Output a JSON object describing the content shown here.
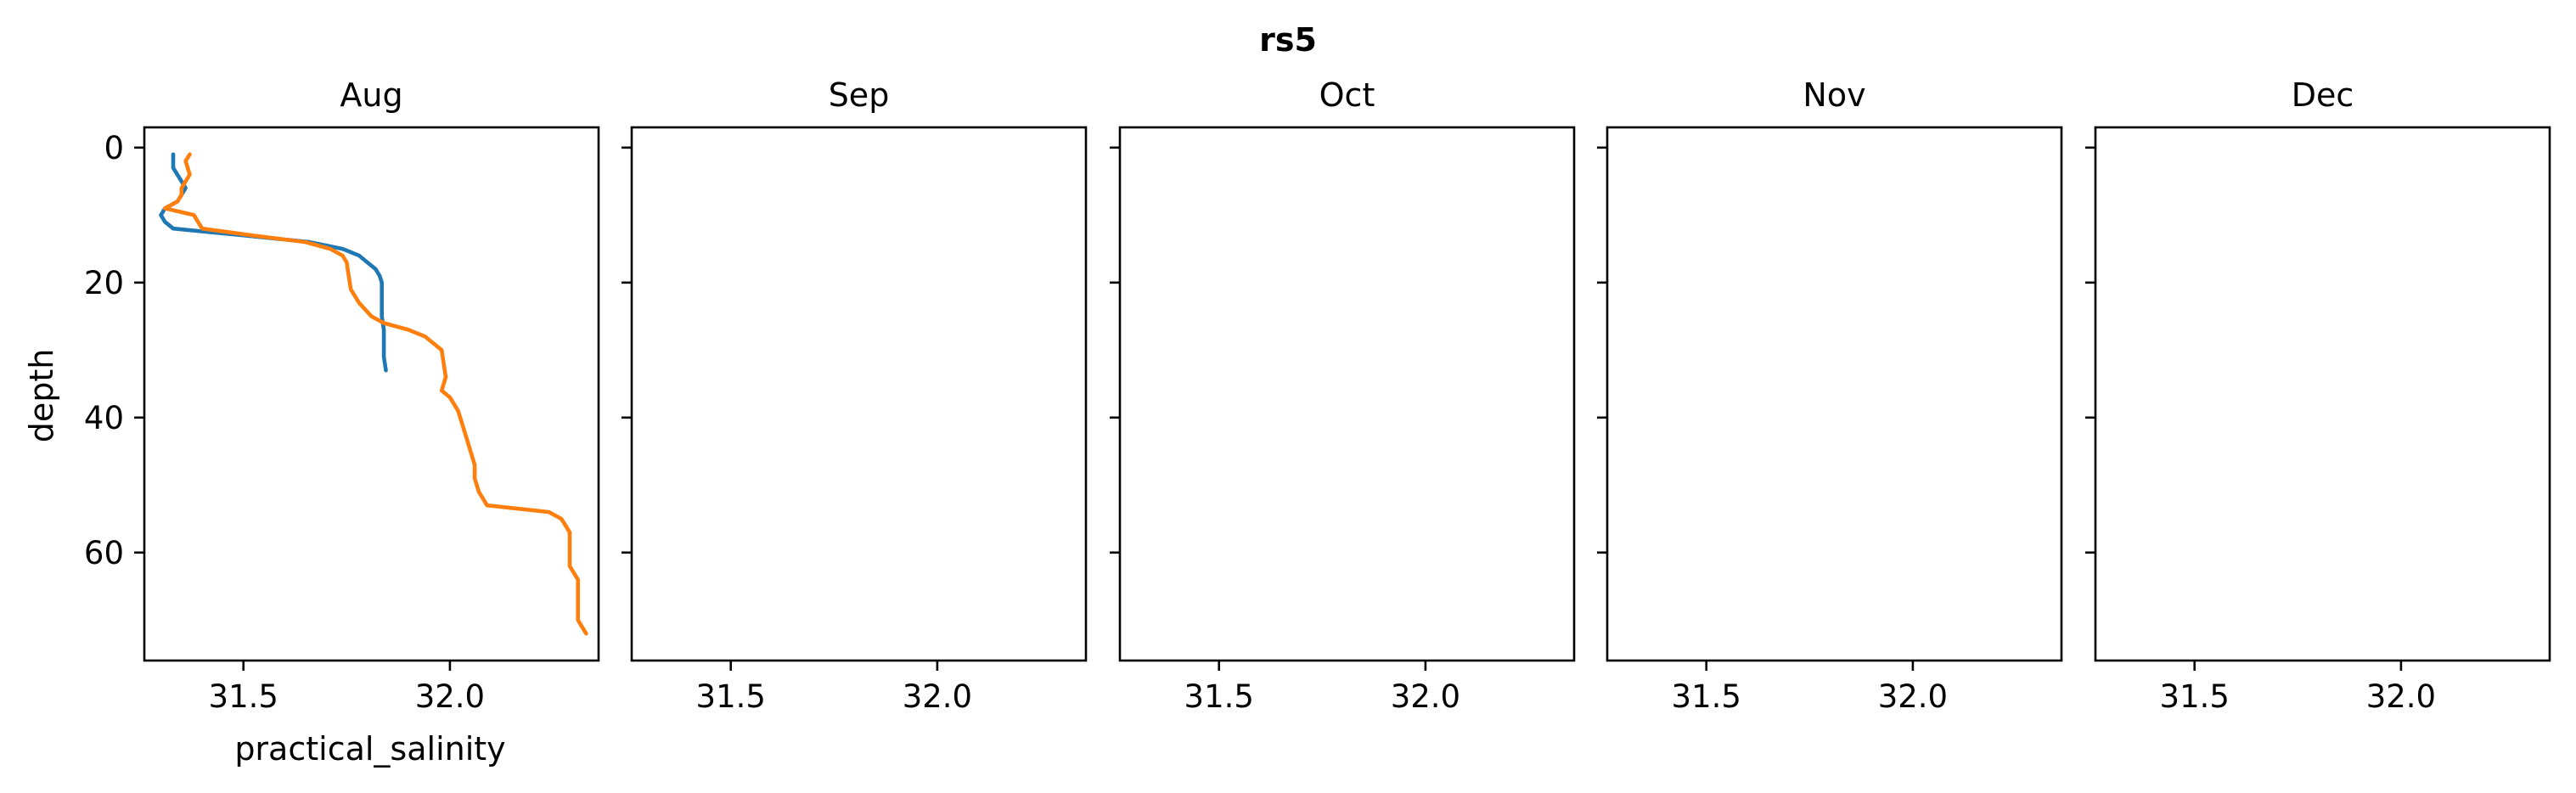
{
  "chart_data": {
    "type": "line",
    "suptitle": "rs5",
    "xlabel": "practical_salinity",
    "ylabel": "depth",
    "xlim": [
      31.26,
      32.36
    ],
    "ylim": [
      76,
      -3
    ],
    "y_inverted": true,
    "grid": false,
    "xticks": [
      31.5,
      32.0
    ],
    "xtick_labels": [
      "31.5",
      "32.0"
    ],
    "yticks": [
      0,
      20,
      40,
      60
    ],
    "ytick_labels": [
      "0",
      "20",
      "40",
      "60"
    ],
    "panels": [
      {
        "title": "Aug",
        "series": [
          {
            "color": "#1f77b4",
            "points": [
              [
                31.33,
                1
              ],
              [
                31.33,
                3
              ],
              [
                31.35,
                5
              ],
              [
                31.36,
                6
              ],
              [
                31.35,
                7
              ],
              [
                31.34,
                8
              ],
              [
                31.31,
                9
              ],
              [
                31.3,
                10
              ],
              [
                31.31,
                11
              ],
              [
                31.33,
                12
              ],
              [
                31.5,
                13
              ],
              [
                31.66,
                14
              ],
              [
                31.74,
                15
              ],
              [
                31.78,
                16
              ],
              [
                31.8,
                17
              ],
              [
                31.82,
                18
              ],
              [
                31.83,
                19
              ],
              [
                31.835,
                20
              ],
              [
                31.835,
                22
              ],
              [
                31.835,
                24
              ],
              [
                31.835,
                25
              ],
              [
                31.84,
                27
              ],
              [
                31.84,
                29
              ],
              [
                31.84,
                31
              ],
              [
                31.845,
                33
              ]
            ]
          },
          {
            "color": "#ff7f0e",
            "points": [
              [
                31.37,
                1
              ],
              [
                31.36,
                2
              ],
              [
                31.37,
                4
              ],
              [
                31.36,
                5
              ],
              [
                31.35,
                6
              ],
              [
                31.35,
                7
              ],
              [
                31.34,
                8
              ],
              [
                31.31,
                9
              ],
              [
                31.38,
                10
              ],
              [
                31.39,
                11
              ],
              [
                31.4,
                12
              ],
              [
                31.52,
                13
              ],
              [
                31.65,
                14
              ],
              [
                31.71,
                15
              ],
              [
                31.74,
                16
              ],
              [
                31.75,
                17
              ],
              [
                31.755,
                19
              ],
              [
                31.76,
                21
              ],
              [
                31.78,
                23
              ],
              [
                31.81,
                25
              ],
              [
                31.84,
                26
              ],
              [
                31.9,
                27
              ],
              [
                31.94,
                28
              ],
              [
                31.96,
                29
              ],
              [
                31.98,
                30
              ],
              [
                31.985,
                32
              ],
              [
                31.99,
                34
              ],
              [
                31.98,
                36
              ],
              [
                32.0,
                37
              ],
              [
                32.02,
                39
              ],
              [
                32.03,
                41
              ],
              [
                32.04,
                43
              ],
              [
                32.05,
                45
              ],
              [
                32.06,
                47
              ],
              [
                32.06,
                49
              ],
              [
                32.07,
                51
              ],
              [
                32.09,
                53
              ],
              [
                32.24,
                54
              ],
              [
                32.27,
                55
              ],
              [
                32.28,
                56
              ],
              [
                32.29,
                57
              ],
              [
                32.29,
                58
              ],
              [
                32.29,
                60
              ],
              [
                32.29,
                62
              ],
              [
                32.3,
                63
              ],
              [
                32.31,
                64
              ],
              [
                32.31,
                66
              ],
              [
                32.31,
                68
              ],
              [
                32.31,
                70
              ],
              [
                32.32,
                71
              ],
              [
                32.33,
                72
              ]
            ]
          }
        ]
      },
      {
        "title": "Sep",
        "series": []
      },
      {
        "title": "Oct",
        "series": []
      },
      {
        "title": "Nov",
        "series": []
      },
      {
        "title": "Dec",
        "series": []
      }
    ]
  }
}
